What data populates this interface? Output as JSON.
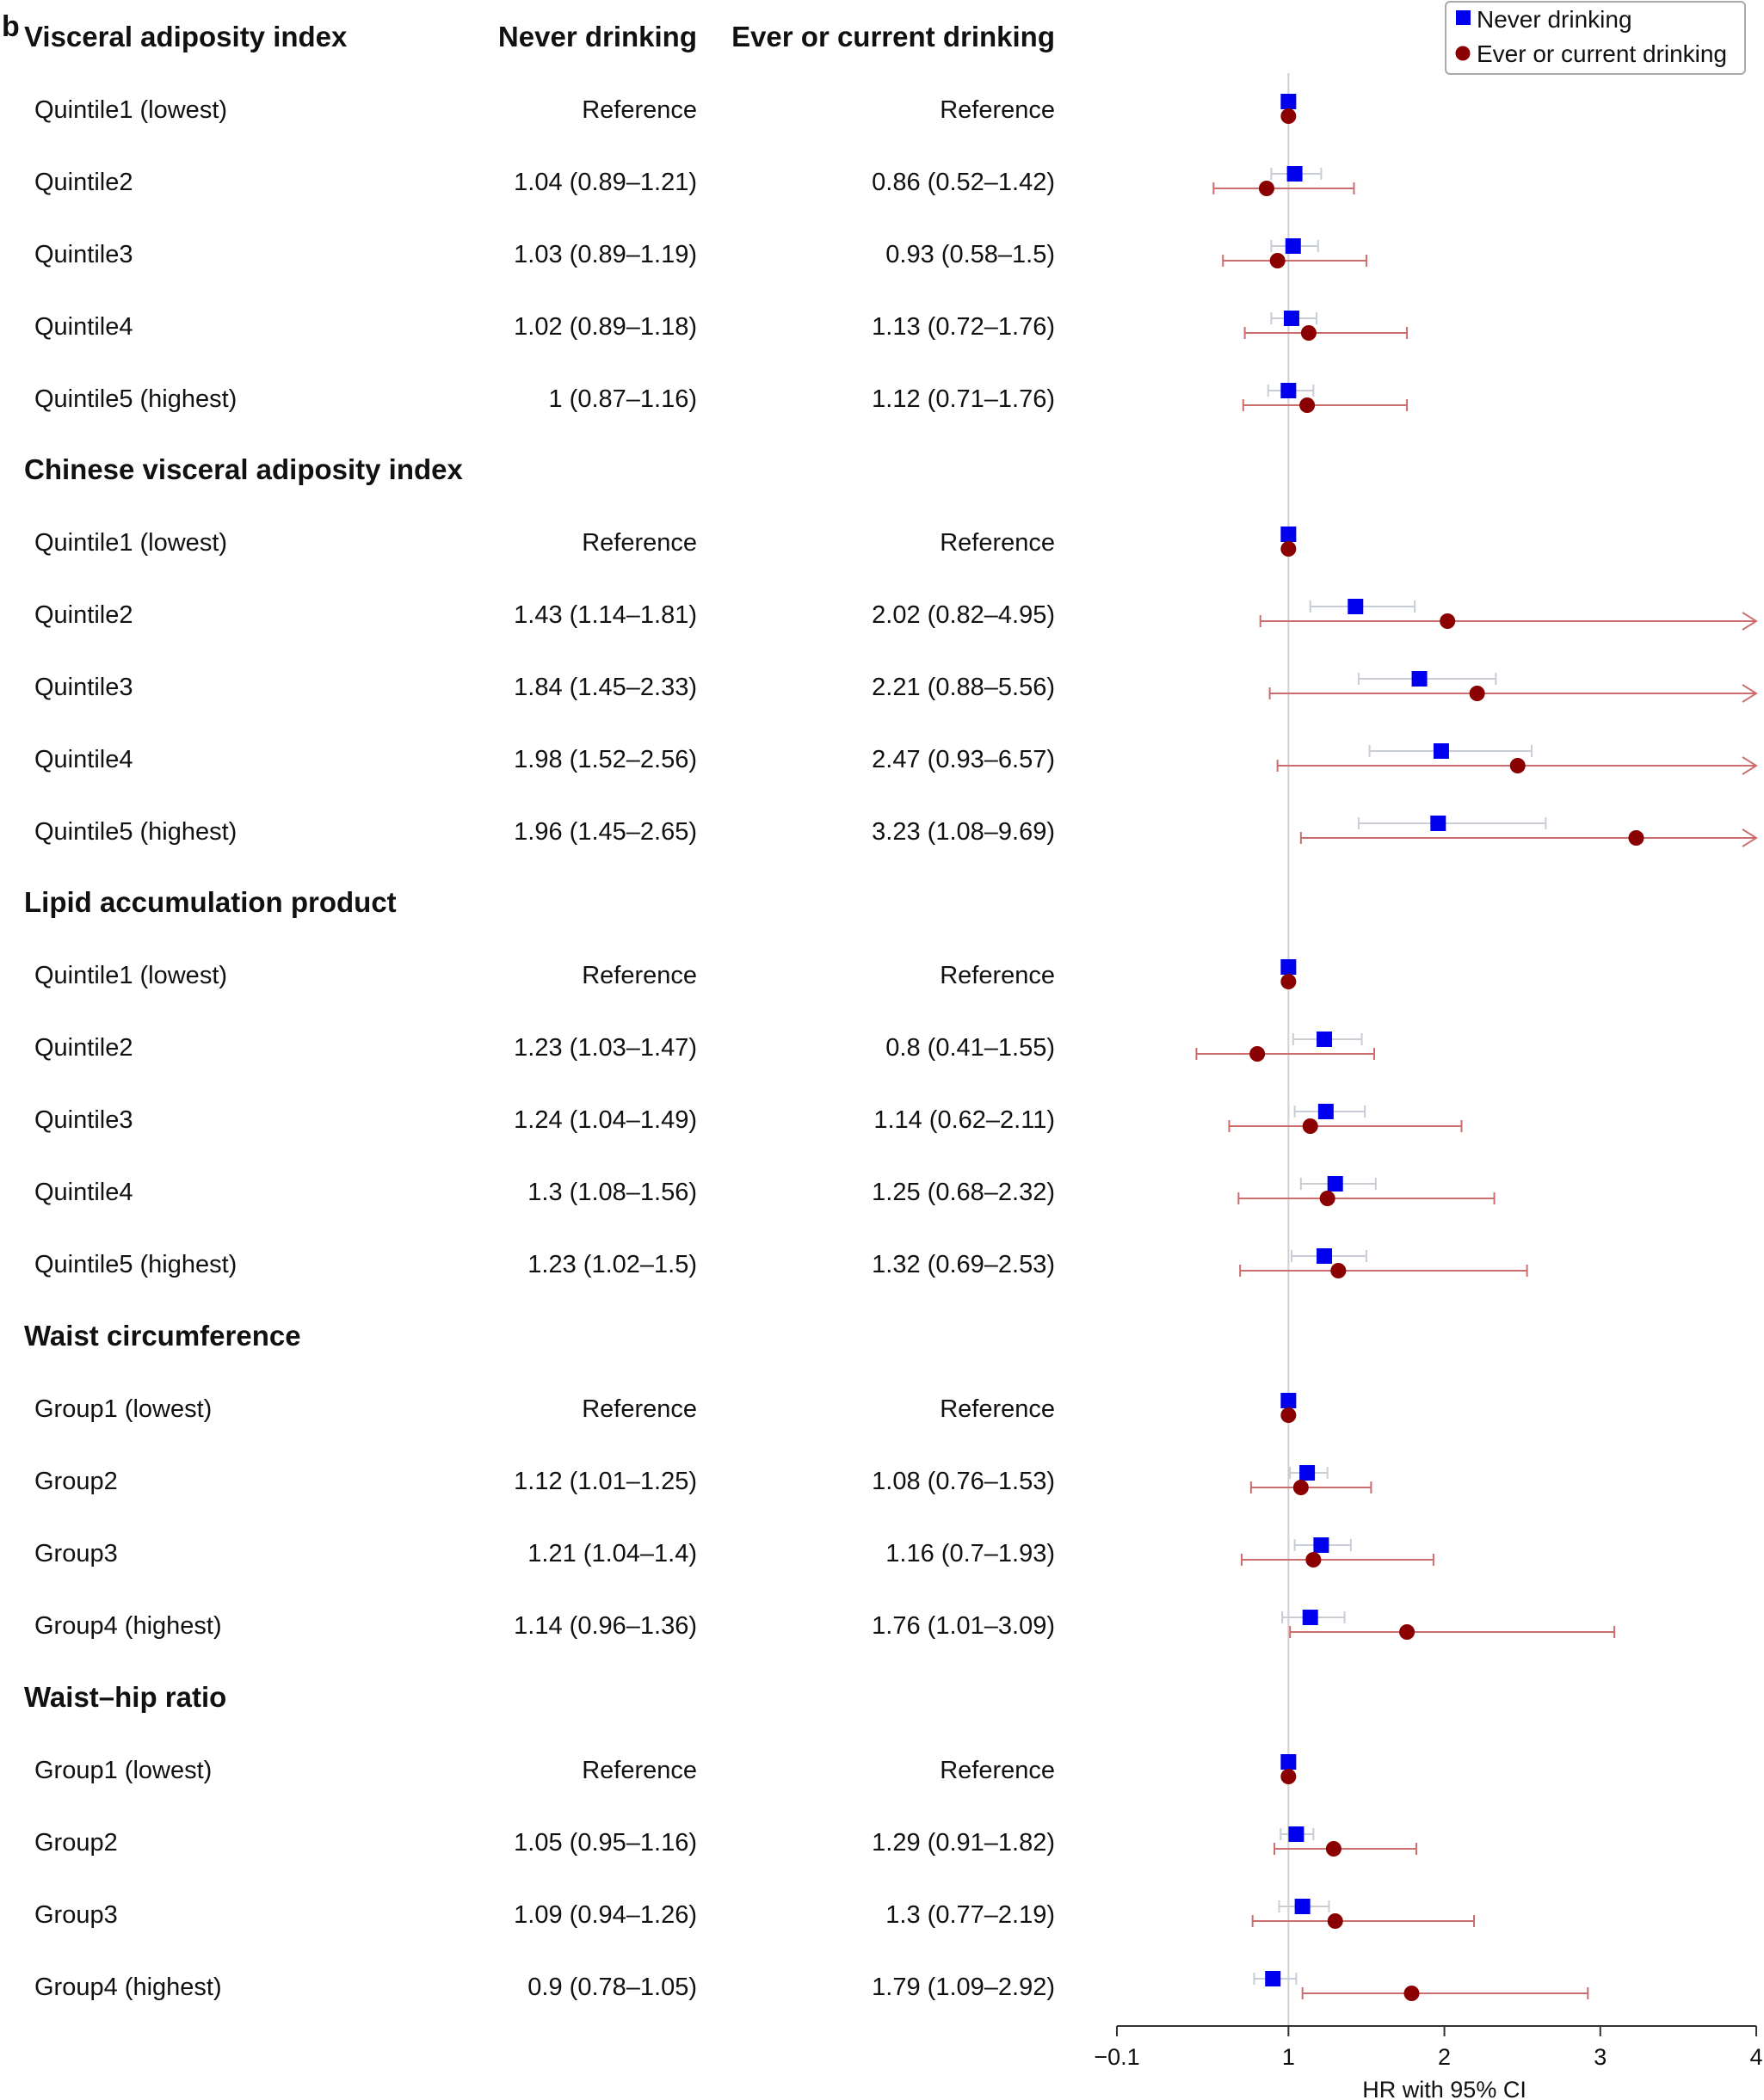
{
  "panel_label": "b",
  "column_headers": {
    "never": "Never drinking",
    "ever": "Ever or current drinking"
  },
  "legend": {
    "never": "Never drinking",
    "ever": "Ever or current drinking",
    "position": "top-right"
  },
  "colors": {
    "never": "#0000ee",
    "ever": "#8b0000",
    "never_ci": "#c8cdd6",
    "ever_ci": "#cd6d6d",
    "ref_line": "#d0d0d0",
    "axis": "#333333"
  },
  "chart_data": {
    "type": "forest",
    "title": "",
    "xlabel": "HR with 95% CI",
    "xlim": [
      -0.1,
      4
    ],
    "xticks": [
      -0.1,
      1,
      2,
      3,
      4
    ],
    "xtick_labels": [
      "−0.1",
      "1",
      "2",
      "3",
      "4"
    ],
    "reference_line": 1,
    "groups": [
      {
        "title": "Visceral adiposity index",
        "rows": [
          {
            "label": "Quintile1 (lowest)",
            "never": {
              "text": "Reference",
              "hr": 1,
              "lo": null,
              "hi": null
            },
            "ever": {
              "text": "Reference",
              "hr": 1,
              "lo": null,
              "hi": null
            }
          },
          {
            "label": "Quintile2",
            "never": {
              "text": "1.04 (0.89–1.21)",
              "hr": 1.04,
              "lo": 0.89,
              "hi": 1.21
            },
            "ever": {
              "text": "0.86 (0.52–1.42)",
              "hr": 0.86,
              "lo": 0.52,
              "hi": 1.42
            }
          },
          {
            "label": "Quintile3",
            "never": {
              "text": "1.03 (0.89–1.19)",
              "hr": 1.03,
              "lo": 0.89,
              "hi": 1.19
            },
            "ever": {
              "text": "0.93 (0.58–1.5)",
              "hr": 0.93,
              "lo": 0.58,
              "hi": 1.5
            }
          },
          {
            "label": "Quintile4",
            "never": {
              "text": "1.02 (0.89–1.18)",
              "hr": 1.02,
              "lo": 0.89,
              "hi": 1.18
            },
            "ever": {
              "text": "1.13 (0.72–1.76)",
              "hr": 1.13,
              "lo": 0.72,
              "hi": 1.76
            }
          },
          {
            "label": "Quintile5 (highest)",
            "never": {
              "text": "1 (0.87–1.16)",
              "hr": 1,
              "lo": 0.87,
              "hi": 1.16
            },
            "ever": {
              "text": "1.12 (0.71–1.76)",
              "hr": 1.12,
              "lo": 0.71,
              "hi": 1.76
            }
          }
        ]
      },
      {
        "title": "Chinese visceral adiposity index",
        "rows": [
          {
            "label": "Quintile1 (lowest)",
            "never": {
              "text": "Reference",
              "hr": 1,
              "lo": null,
              "hi": null
            },
            "ever": {
              "text": "Reference",
              "hr": 1,
              "lo": null,
              "hi": null
            }
          },
          {
            "label": "Quintile2",
            "never": {
              "text": "1.43 (1.14–1.81)",
              "hr": 1.43,
              "lo": 1.14,
              "hi": 1.81
            },
            "ever": {
              "text": "2.02 (0.82–4.95)",
              "hr": 2.02,
              "lo": 0.82,
              "hi": 4.95
            }
          },
          {
            "label": "Quintile3",
            "never": {
              "text": "1.84 (1.45–2.33)",
              "hr": 1.84,
              "lo": 1.45,
              "hi": 2.33
            },
            "ever": {
              "text": "2.21 (0.88–5.56)",
              "hr": 2.21,
              "lo": 0.88,
              "hi": 5.56
            }
          },
          {
            "label": "Quintile4",
            "never": {
              "text": "1.98 (1.52–2.56)",
              "hr": 1.98,
              "lo": 1.52,
              "hi": 2.56
            },
            "ever": {
              "text": "2.47 (0.93–6.57)",
              "hr": 2.47,
              "lo": 0.93,
              "hi": 6.57
            }
          },
          {
            "label": "Quintile5 (highest)",
            "never": {
              "text": "1.96 (1.45–2.65)",
              "hr": 1.96,
              "lo": 1.45,
              "hi": 2.65
            },
            "ever": {
              "text": "3.23 (1.08–9.69)",
              "hr": 3.23,
              "lo": 1.08,
              "hi": 9.69
            }
          }
        ]
      },
      {
        "title": "Lipid accumulation product",
        "rows": [
          {
            "label": "Quintile1 (lowest)",
            "never": {
              "text": "Reference",
              "hr": 1,
              "lo": null,
              "hi": null
            },
            "ever": {
              "text": "Reference",
              "hr": 1,
              "lo": null,
              "hi": null
            }
          },
          {
            "label": "Quintile2",
            "never": {
              "text": "1.23 (1.03–1.47)",
              "hr": 1.23,
              "lo": 1.03,
              "hi": 1.47
            },
            "ever": {
              "text": "0.8 (0.41–1.55)",
              "hr": 0.8,
              "lo": 0.41,
              "hi": 1.55
            }
          },
          {
            "label": "Quintile3",
            "never": {
              "text": "1.24 (1.04–1.49)",
              "hr": 1.24,
              "lo": 1.04,
              "hi": 1.49
            },
            "ever": {
              "text": "1.14 (0.62–2.11)",
              "hr": 1.14,
              "lo": 0.62,
              "hi": 2.11
            }
          },
          {
            "label": "Quintile4",
            "never": {
              "text": "1.3 (1.08–1.56)",
              "hr": 1.3,
              "lo": 1.08,
              "hi": 1.56
            },
            "ever": {
              "text": "1.25 (0.68–2.32)",
              "hr": 1.25,
              "lo": 0.68,
              "hi": 2.32
            }
          },
          {
            "label": "Quintile5 (highest)",
            "never": {
              "text": "1.23 (1.02–1.5)",
              "hr": 1.23,
              "lo": 1.02,
              "hi": 1.5
            },
            "ever": {
              "text": "1.32 (0.69–2.53)",
              "hr": 1.32,
              "lo": 0.69,
              "hi": 2.53
            }
          }
        ]
      },
      {
        "title": "Waist circumference",
        "rows": [
          {
            "label": "Group1 (lowest)",
            "never": {
              "text": "Reference",
              "hr": 1,
              "lo": null,
              "hi": null
            },
            "ever": {
              "text": "Reference",
              "hr": 1,
              "lo": null,
              "hi": null
            }
          },
          {
            "label": "Group2",
            "never": {
              "text": "1.12 (1.01–1.25)",
              "hr": 1.12,
              "lo": 1.01,
              "hi": 1.25
            },
            "ever": {
              "text": "1.08 (0.76–1.53)",
              "hr": 1.08,
              "lo": 0.76,
              "hi": 1.53
            }
          },
          {
            "label": "Group3",
            "never": {
              "text": "1.21 (1.04–1.4)",
              "hr": 1.21,
              "lo": 1.04,
              "hi": 1.4
            },
            "ever": {
              "text": "1.16 (0.7–1.93)",
              "hr": 1.16,
              "lo": 0.7,
              "hi": 1.93
            }
          },
          {
            "label": "Group4 (highest)",
            "never": {
              "text": "1.14 (0.96–1.36)",
              "hr": 1.14,
              "lo": 0.96,
              "hi": 1.36
            },
            "ever": {
              "text": "1.76 (1.01–3.09)",
              "hr": 1.76,
              "lo": 1.01,
              "hi": 3.09
            }
          }
        ]
      },
      {
        "title": "Waist–hip ratio",
        "rows": [
          {
            "label": "Group1 (lowest)",
            "never": {
              "text": "Reference",
              "hr": 1,
              "lo": null,
              "hi": null
            },
            "ever": {
              "text": "Reference",
              "hr": 1,
              "lo": null,
              "hi": null
            }
          },
          {
            "label": "Group2",
            "never": {
              "text": "1.05 (0.95–1.16)",
              "hr": 1.05,
              "lo": 0.95,
              "hi": 1.16
            },
            "ever": {
              "text": "1.29 (0.91–1.82)",
              "hr": 1.29,
              "lo": 0.91,
              "hi": 1.82
            }
          },
          {
            "label": "Group3",
            "never": {
              "text": "1.09 (0.94–1.26)",
              "hr": 1.09,
              "lo": 0.94,
              "hi": 1.26
            },
            "ever": {
              "text": "1.3 (0.77–2.19)",
              "hr": 1.3,
              "lo": 0.77,
              "hi": 2.19
            }
          },
          {
            "label": "Group4 (highest)",
            "never": {
              "text": "0.9 (0.78–1.05)",
              "hr": 0.9,
              "lo": 0.78,
              "hi": 1.05
            },
            "ever": {
              "text": "1.79 (1.09–2.92)",
              "hr": 1.79,
              "lo": 1.09,
              "hi": 2.92
            }
          }
        ]
      }
    ]
  }
}
